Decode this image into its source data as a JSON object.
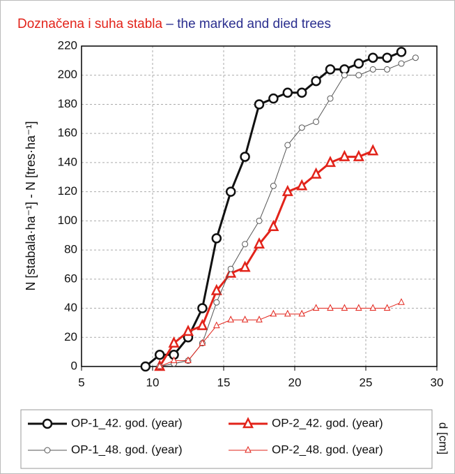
{
  "chart_data": {
    "type": "line",
    "title": "Doznačena i suha stabla",
    "title_color": "#e2231a",
    "title_en": "– the marked and died trees",
    "title_en_color": "#2b2f8f",
    "ylabel": "N [stabala·ha⁻¹] - N [tres·ha⁻¹]",
    "xlabel": "d [cm]",
    "xlim": [
      5,
      30
    ],
    "xticks": [
      5,
      10,
      15,
      20,
      25,
      30
    ],
    "ylim": [
      0,
      220
    ],
    "yticks": [
      0,
      20,
      40,
      60,
      80,
      100,
      120,
      140,
      160,
      180,
      200,
      220
    ],
    "grid": true,
    "series": [
      {
        "name": "OP-1_42. god. (year)",
        "color": "#111111",
        "marker": "circle",
        "line_width": 3,
        "x": [
          9.5,
          10.5,
          11.5,
          12.5,
          13.5,
          14.5,
          15.5,
          16.5,
          17.5,
          18.5,
          19.5,
          20.5,
          21.5,
          22.5,
          23.5,
          24.5,
          25.5,
          26.5,
          27.5
        ],
        "values": [
          0,
          8,
          8,
          20,
          40,
          88,
          120,
          144,
          180,
          184,
          188,
          188,
          196,
          204,
          204,
          208,
          212,
          212,
          216
        ]
      },
      {
        "name": "OP-2_42. god. (year)",
        "color": "#e2231a",
        "marker": "triangle",
        "line_width": 3,
        "x": [
          10.5,
          11.5,
          12.5,
          13.5,
          14.5,
          15.5,
          16.5,
          17.5,
          18.5,
          19.5,
          20.5,
          21.5,
          22.5,
          23.5,
          24.5,
          25.5
        ],
        "values": [
          0,
          16,
          24,
          28,
          52,
          64,
          68,
          84,
          96,
          120,
          124,
          132,
          140,
          144,
          144,
          148
        ]
      },
      {
        "name": "OP-1_48. god. (year)",
        "color": "#555555",
        "marker": "circle",
        "line_width": 1,
        "x": [
          10.5,
          11.5,
          12.5,
          13.5,
          14.5,
          15.5,
          16.5,
          17.5,
          18.5,
          19.5,
          20.5,
          21.5,
          22.5,
          23.5,
          24.5,
          25.5,
          26.5,
          27.5,
          28.5
        ],
        "values": [
          0,
          2,
          4,
          16,
          44,
          67,
          84,
          100,
          124,
          152,
          164,
          168,
          184,
          200,
          200,
          204,
          204,
          208,
          212
        ]
      },
      {
        "name": "OP-2_48. god. (year)",
        "color": "#e2231a",
        "marker": "triangle",
        "line_width": 1,
        "x": [
          10.5,
          11.5,
          12.5,
          13.5,
          14.5,
          15.5,
          16.5,
          17.5,
          18.5,
          19.5,
          20.5,
          21.5,
          22.5,
          23.5,
          24.5,
          25.5,
          26.5,
          27.5
        ],
        "values": [
          0,
          4,
          4,
          16,
          28,
          32,
          32,
          32,
          36,
          36,
          36,
          40,
          40,
          40,
          40,
          40,
          40,
          44
        ]
      }
    ]
  }
}
